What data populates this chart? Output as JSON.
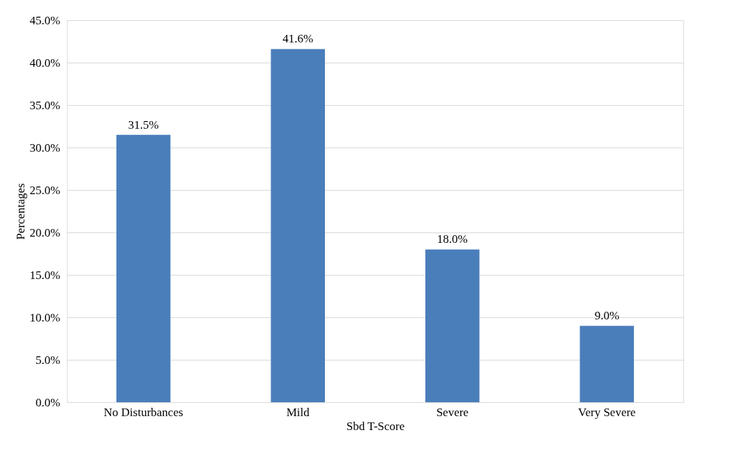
{
  "chart_data": {
    "type": "bar",
    "xlabel": "Sbd T-Score",
    "ylabel": "Percentages",
    "categories": [
      "No Disturbances",
      "Mild",
      "Severe",
      "Very Severe"
    ],
    "values": [
      31.5,
      41.6,
      18.0,
      9.0
    ],
    "value_labels": [
      "31.5%",
      "41.6%",
      "18.0%",
      "9.0%"
    ],
    "color": "#4a7ebb",
    "ylim": [
      0,
      45
    ],
    "yticks": [
      {
        "value": 0,
        "label": "0.0%"
      },
      {
        "value": 5,
        "label": "5.0%"
      },
      {
        "value": 10,
        "label": "10.0%"
      },
      {
        "value": 15,
        "label": "15.0%"
      },
      {
        "value": 20,
        "label": "20.0%"
      },
      {
        "value": 25,
        "label": "25.0%"
      },
      {
        "value": 30,
        "label": "30.0%"
      },
      {
        "value": 35,
        "label": "35.0%"
      },
      {
        "value": 40,
        "label": "40.0%"
      },
      {
        "value": 45,
        "label": "45.0%"
      }
    ],
    "grid": "y"
  }
}
